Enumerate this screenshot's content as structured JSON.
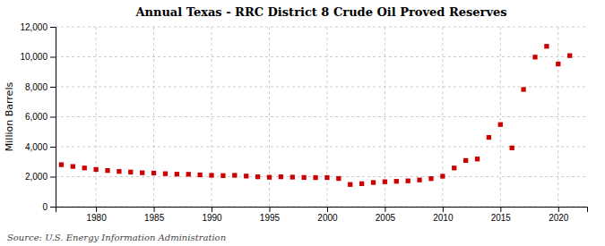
{
  "chart_data": {
    "type": "scatter",
    "title": "Annual Texas - RRC District 8 Crude Oil Proved Reserves",
    "ylabel": "Million Barrels",
    "source": "Source: U.S. Energy Information Administration",
    "color": "#cc0000",
    "marker": "square",
    "grid": true,
    "xlim": [
      1976.5,
      2022.5
    ],
    "xticks": [
      1980,
      1985,
      1990,
      1995,
      2000,
      2005,
      2010,
      2015,
      2020
    ],
    "ylim": [
      0,
      12000
    ],
    "yticks": [
      0,
      {
        "value": 2000,
        "label": "2,000"
      },
      {
        "value": 4000,
        "label": "4,000"
      },
      {
        "value": 6000,
        "label": "6,000"
      },
      {
        "value": 8000,
        "label": "8,000"
      },
      {
        "value": 10000,
        "label": "10,000"
      },
      {
        "value": 12000,
        "label": "12,000"
      }
    ],
    "x": [
      1977,
      1978,
      1979,
      1980,
      1981,
      1982,
      1983,
      1984,
      1985,
      1986,
      1987,
      1988,
      1989,
      1990,
      1991,
      1992,
      1993,
      1994,
      1995,
      1996,
      1997,
      1998,
      1999,
      2000,
      2001,
      2002,
      2003,
      2004,
      2005,
      2006,
      2007,
      2008,
      2009,
      2010,
      2011,
      2012,
      2013,
      2014,
      2015,
      2016,
      2017,
      2018,
      2019,
      2020,
      2021
    ],
    "values": [
      2800,
      2680,
      2580,
      2480,
      2410,
      2350,
      2310,
      2260,
      2240,
      2200,
      2170,
      2160,
      2120,
      2090,
      2070,
      2090,
      2040,
      1990,
      1960,
      1990,
      1970,
      1950,
      1940,
      1940,
      1880,
      1480,
      1530,
      1610,
      1660,
      1690,
      1720,
      1780,
      1870,
      2030,
      2580,
      3080,
      3180,
      4620,
      5480,
      3920,
      7820,
      9980,
      10700,
      9520,
      10080
    ]
  }
}
